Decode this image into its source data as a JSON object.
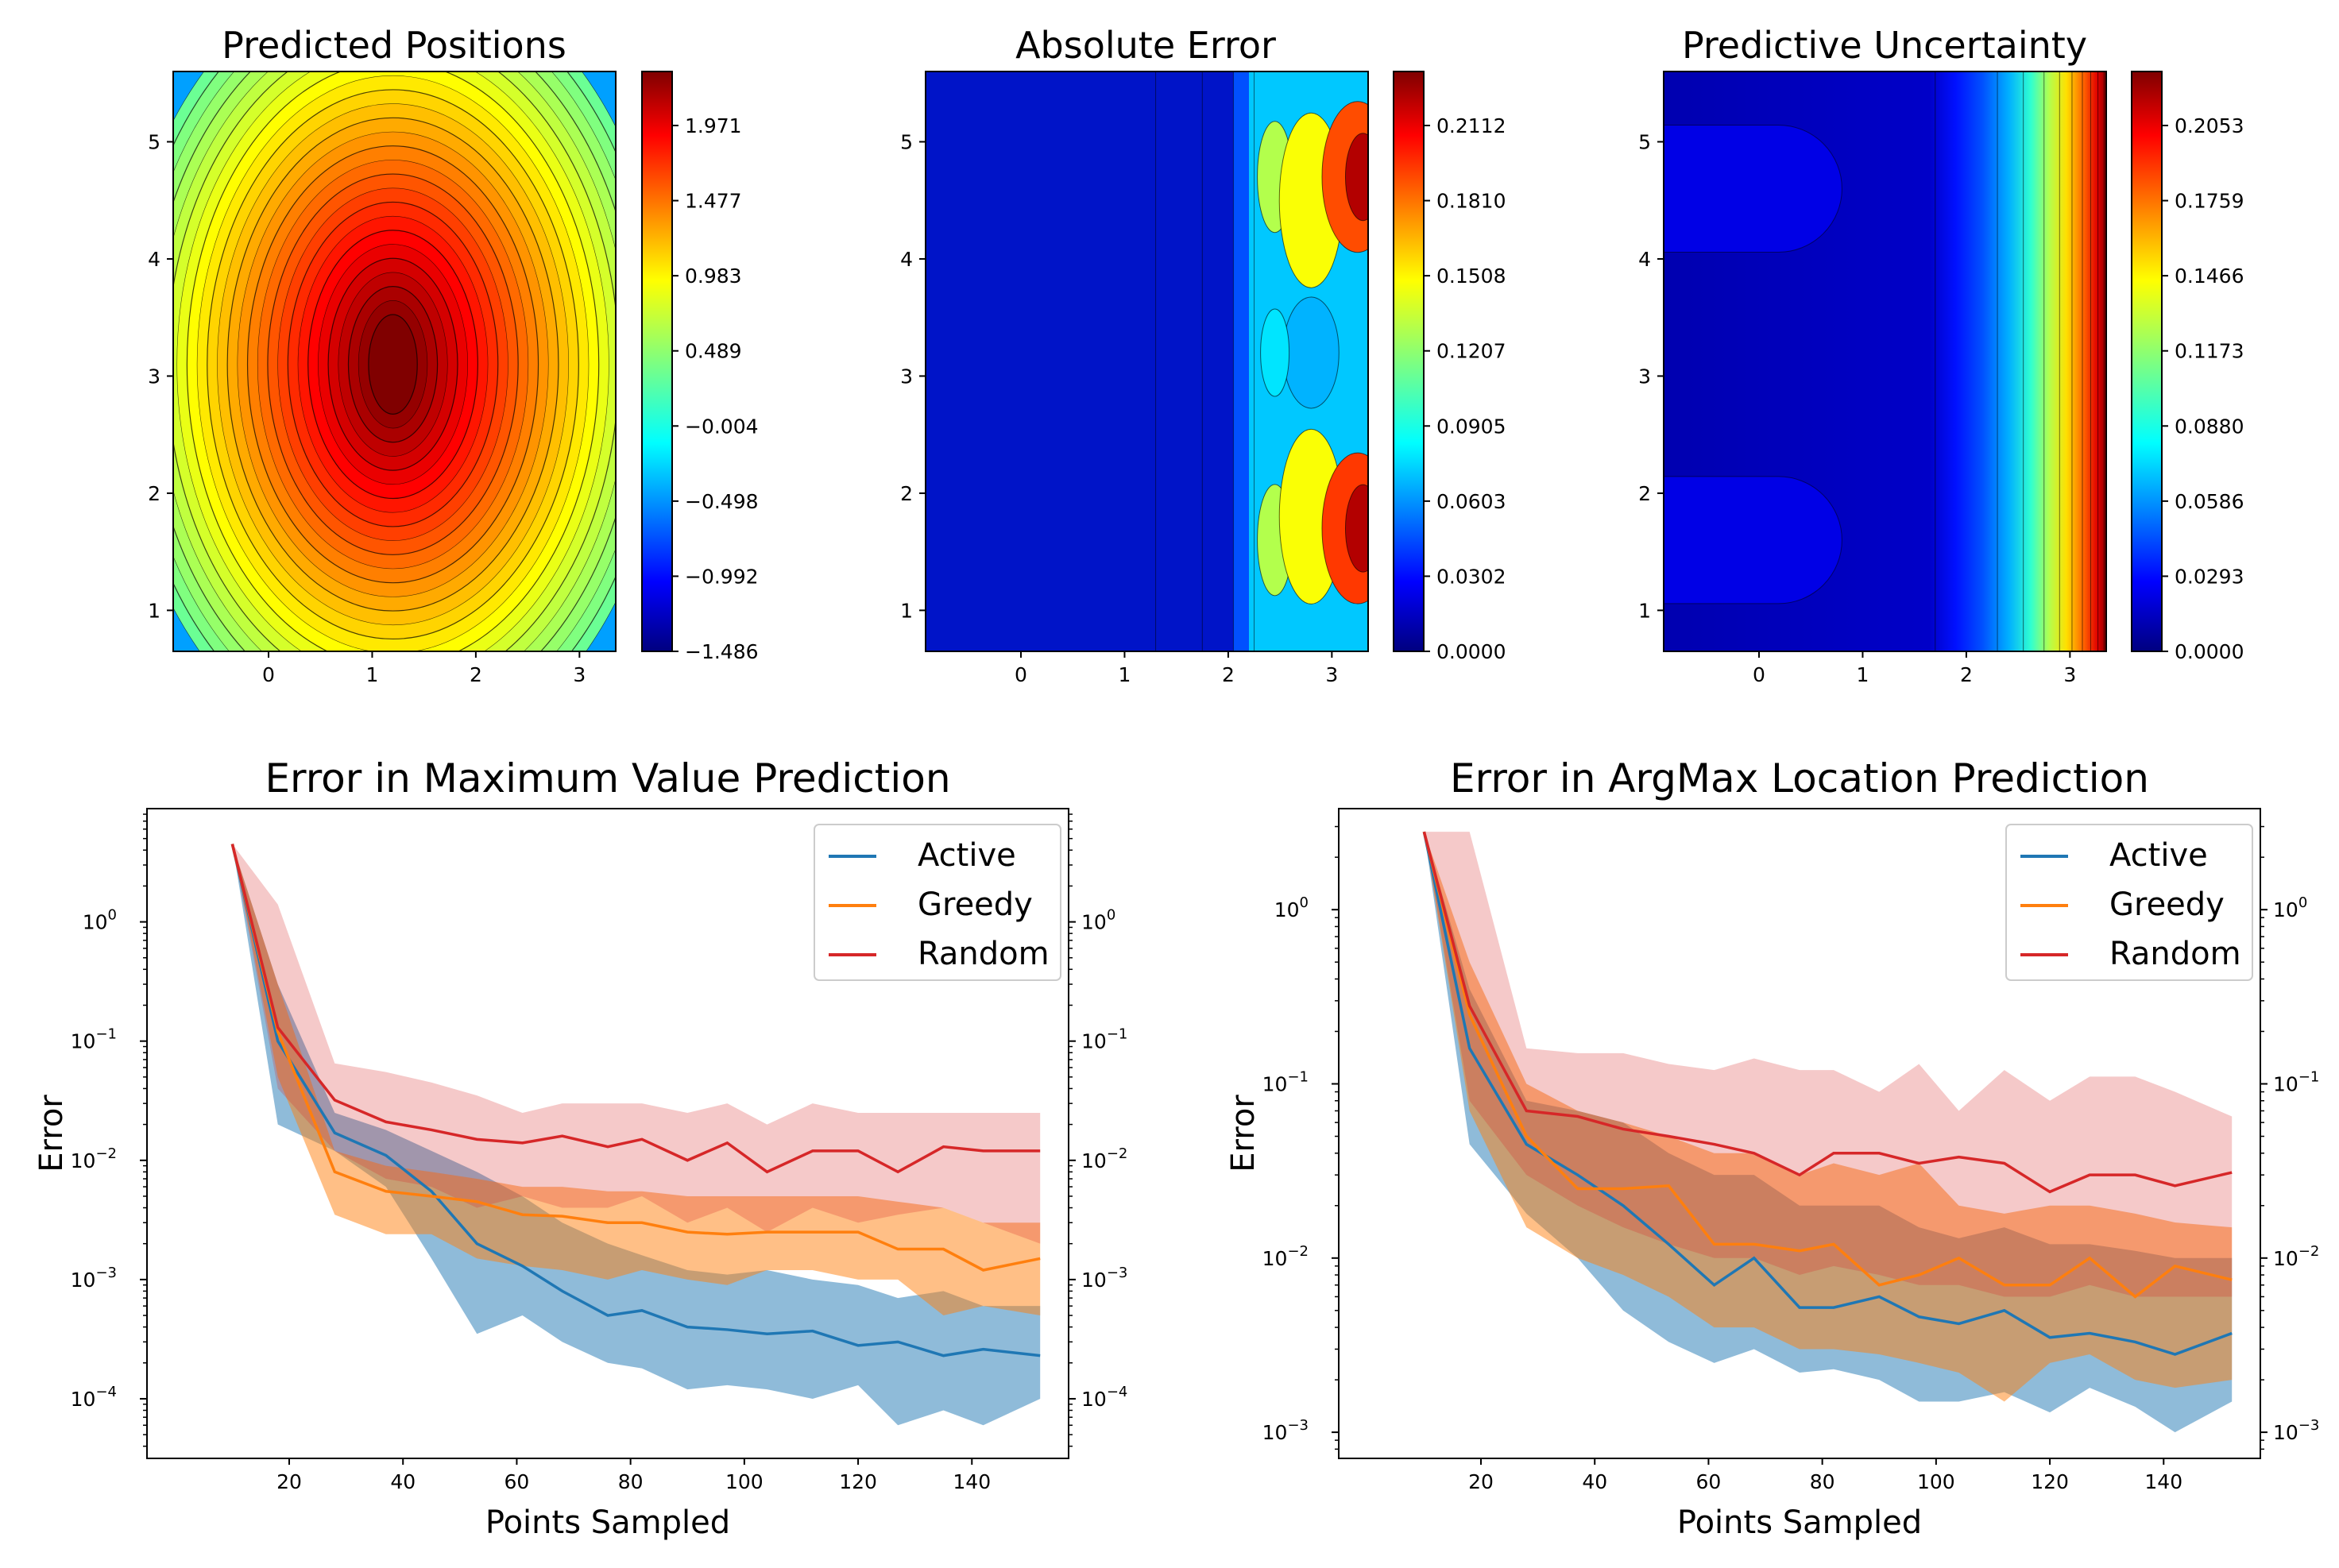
{
  "chart_data": [
    {
      "type": "heatmap",
      "title": "Predicted Positions",
      "x_ticks": [
        "0",
        "1",
        "2",
        "3"
      ],
      "y_ticks": [
        "1",
        "2",
        "3",
        "4",
        "5"
      ],
      "xlim": [
        -0.92,
        3.35
      ],
      "ylim": [
        0.65,
        5.6
      ],
      "colorbar_ticks": [
        "1.971",
        "1.477",
        "0.983",
        "0.489",
        "−0.004",
        "−0.498",
        "−0.992",
        "−1.486"
      ],
      "range": [
        -1.486,
        2.4
      ],
      "peak": {
        "x": 1.2,
        "y": 3.1
      },
      "colormap": "jet"
    },
    {
      "type": "heatmap",
      "title": "Absolute Error",
      "x_ticks": [
        "0",
        "1",
        "2",
        "3"
      ],
      "y_ticks": [
        "1",
        "2",
        "3",
        "4",
        "5"
      ],
      "xlim": [
        -0.92,
        3.35
      ],
      "ylim": [
        0.65,
        5.6
      ],
      "colorbar_ticks": [
        "0.2112",
        "0.1810",
        "0.1508",
        "0.1207",
        "0.0905",
        "0.0603",
        "0.0302",
        "0.0000"
      ],
      "range": [
        0.0,
        0.24
      ],
      "colormap": "jet"
    },
    {
      "type": "heatmap",
      "title": "Predictive Uncertainty",
      "x_ticks": [
        "0",
        "1",
        "2",
        "3"
      ],
      "y_ticks": [
        "1",
        "2",
        "3",
        "4",
        "5"
      ],
      "xlim": [
        -0.92,
        3.35
      ],
      "ylim": [
        0.65,
        5.6
      ],
      "colorbar_ticks": [
        "0.2053",
        "0.1759",
        "0.1466",
        "0.1173",
        "0.0880",
        "0.0586",
        "0.0293",
        "0.0000"
      ],
      "range": [
        0.0,
        0.235
      ],
      "colormap": "jet"
    },
    {
      "type": "line",
      "title": "Error in Maximum Value Prediction",
      "xlabel": "Points Sampled",
      "ylabel": "Error",
      "yscale": "log",
      "xlim": [
        -5,
        157
      ],
      "ylim_log10": [
        -4.5,
        0.95
      ],
      "x_ticks": [
        20,
        40,
        60,
        80,
        100,
        120,
        140
      ],
      "y_ticks": [
        {
          "exp": 0,
          "label": "10",
          "sup": "0"
        },
        {
          "exp": -1,
          "label": "10",
          "sup": "−1"
        },
        {
          "exp": -2,
          "label": "10",
          "sup": "−2"
        },
        {
          "exp": -3,
          "label": "10",
          "sup": "−3"
        },
        {
          "exp": -4,
          "label": "10",
          "sup": "−4"
        }
      ],
      "x": [
        10,
        18,
        28,
        37,
        45,
        53,
        61,
        68,
        76,
        82,
        90,
        97,
        104,
        112,
        120,
        127,
        135,
        142,
        152
      ],
      "series": [
        {
          "name": "Active",
          "color": "#1f77b4",
          "mean": [
            4.5,
            0.1,
            0.017,
            0.011,
            0.0055,
            0.002,
            0.0013,
            0.0008,
            0.0005,
            0.00055,
            0.0004,
            0.00038,
            0.00035,
            0.00037,
            0.00028,
            0.0003,
            0.00023,
            0.00026,
            0.00023
          ],
          "lower": [
            4.5,
            0.02,
            0.012,
            0.006,
            0.0015,
            0.00035,
            0.0005,
            0.0003,
            0.0002,
            0.00018,
            0.00012,
            0.00013,
            0.00012,
            0.0001,
            0.00013,
            6e-05,
            8e-05,
            6e-05,
            0.0001
          ],
          "upper": [
            4.5,
            0.3,
            0.025,
            0.018,
            0.012,
            0.008,
            0.005,
            0.003,
            0.002,
            0.0016,
            0.0012,
            0.0011,
            0.0012,
            0.001,
            0.0009,
            0.0007,
            0.0008,
            0.0006,
            0.0006
          ]
        },
        {
          "name": "Greedy",
          "color": "#ff7f0e",
          "mean": [
            4.5,
            0.12,
            0.008,
            0.0055,
            0.005,
            0.0045,
            0.0035,
            0.0034,
            0.003,
            0.003,
            0.0025,
            0.0024,
            0.0025,
            0.0025,
            0.0025,
            0.0018,
            0.0018,
            0.0012,
            0.0015
          ],
          "lower": [
            4.5,
            0.05,
            0.0035,
            0.0024,
            0.0024,
            0.0015,
            0.0013,
            0.0012,
            0.001,
            0.0012,
            0.001,
            0.0009,
            0.0012,
            0.0012,
            0.001,
            0.001,
            0.0005,
            0.0006,
            0.0005
          ],
          "upper": [
            4.5,
            0.3,
            0.012,
            0.009,
            0.008,
            0.007,
            0.006,
            0.006,
            0.0055,
            0.0055,
            0.005,
            0.005,
            0.005,
            0.005,
            0.005,
            0.0045,
            0.004,
            0.003,
            0.003
          ]
        },
        {
          "name": "Random",
          "color": "#d62728",
          "mean": [
            4.5,
            0.13,
            0.032,
            0.021,
            0.018,
            0.015,
            0.014,
            0.016,
            0.013,
            0.015,
            0.01,
            0.014,
            0.008,
            0.012,
            0.012,
            0.008,
            0.013,
            0.012,
            0.012
          ],
          "lower": [
            4.5,
            0.04,
            0.012,
            0.007,
            0.006,
            0.004,
            0.005,
            0.004,
            0.004,
            0.005,
            0.003,
            0.004,
            0.0025,
            0.004,
            0.003,
            0.0035,
            0.004,
            0.003,
            0.002
          ],
          "upper": [
            4.5,
            1.4,
            0.065,
            0.055,
            0.045,
            0.035,
            0.025,
            0.03,
            0.03,
            0.03,
            0.025,
            0.03,
            0.02,
            0.03,
            0.025,
            0.025,
            0.025,
            0.025,
            0.025
          ]
        }
      ]
    },
    {
      "type": "line",
      "title": "Error in ArgMax Location Prediction",
      "xlabel": "Points Sampled",
      "ylabel": "Error",
      "yscale": "log",
      "xlim": [
        -5,
        157
      ],
      "ylim_log10": [
        -3.15,
        0.58
      ],
      "x_ticks": [
        20,
        40,
        60,
        80,
        100,
        120,
        140
      ],
      "y_ticks": [
        {
          "exp": 0,
          "label": "10",
          "sup": "0"
        },
        {
          "exp": -1,
          "label": "10",
          "sup": "−1"
        },
        {
          "exp": -2,
          "label": "10",
          "sup": "−2"
        },
        {
          "exp": -3,
          "label": "10",
          "sup": "−3"
        }
      ],
      "x": [
        10,
        18,
        28,
        37,
        45,
        53,
        61,
        68,
        76,
        82,
        90,
        97,
        104,
        112,
        120,
        127,
        135,
        142,
        152
      ],
      "series": [
        {
          "name": "Active",
          "color": "#1f77b4",
          "mean": [
            2.8,
            0.16,
            0.045,
            0.03,
            0.02,
            0.012,
            0.007,
            0.01,
            0.0052,
            0.0052,
            0.006,
            0.0046,
            0.0042,
            0.005,
            0.0035,
            0.0037,
            0.0033,
            0.0028,
            0.0037
          ],
          "lower": [
            2.8,
            0.045,
            0.018,
            0.01,
            0.005,
            0.0033,
            0.0025,
            0.003,
            0.0022,
            0.0023,
            0.002,
            0.0015,
            0.0015,
            0.0017,
            0.0013,
            0.0018,
            0.0014,
            0.001,
            0.0015
          ],
          "upper": [
            2.8,
            0.35,
            0.08,
            0.07,
            0.06,
            0.04,
            0.03,
            0.03,
            0.02,
            0.02,
            0.02,
            0.015,
            0.013,
            0.015,
            0.012,
            0.012,
            0.011,
            0.01,
            0.01
          ]
        },
        {
          "name": "Greedy",
          "color": "#ff7f0e",
          "mean": [
            2.8,
            0.25,
            0.05,
            0.025,
            0.025,
            0.026,
            0.012,
            0.012,
            0.011,
            0.012,
            0.007,
            0.008,
            0.01,
            0.007,
            0.007,
            0.01,
            0.006,
            0.009,
            0.0075
          ],
          "lower": [
            2.8,
            0.07,
            0.015,
            0.01,
            0.008,
            0.006,
            0.004,
            0.004,
            0.003,
            0.003,
            0.0028,
            0.0025,
            0.0022,
            0.0015,
            0.0025,
            0.0028,
            0.002,
            0.0018,
            0.002
          ],
          "upper": [
            2.8,
            0.5,
            0.1,
            0.07,
            0.06,
            0.05,
            0.04,
            0.04,
            0.03,
            0.035,
            0.03,
            0.035,
            0.02,
            0.018,
            0.02,
            0.02,
            0.018,
            0.016,
            0.015
          ]
        },
        {
          "name": "Random",
          "color": "#d62728",
          "mean": [
            2.8,
            0.28,
            0.07,
            0.065,
            0.055,
            0.05,
            0.045,
            0.04,
            0.03,
            0.04,
            0.04,
            0.035,
            0.038,
            0.035,
            0.024,
            0.03,
            0.03,
            0.026,
            0.031
          ],
          "lower": [
            2.8,
            0.08,
            0.03,
            0.02,
            0.015,
            0.012,
            0.01,
            0.01,
            0.008,
            0.009,
            0.008,
            0.007,
            0.007,
            0.006,
            0.006,
            0.007,
            0.006,
            0.006,
            0.006
          ],
          "upper": [
            2.8,
            2.8,
            0.16,
            0.15,
            0.15,
            0.13,
            0.12,
            0.14,
            0.12,
            0.12,
            0.09,
            0.13,
            0.07,
            0.12,
            0.08,
            0.11,
            0.11,
            0.09,
            0.065
          ]
        }
      ]
    }
  ]
}
